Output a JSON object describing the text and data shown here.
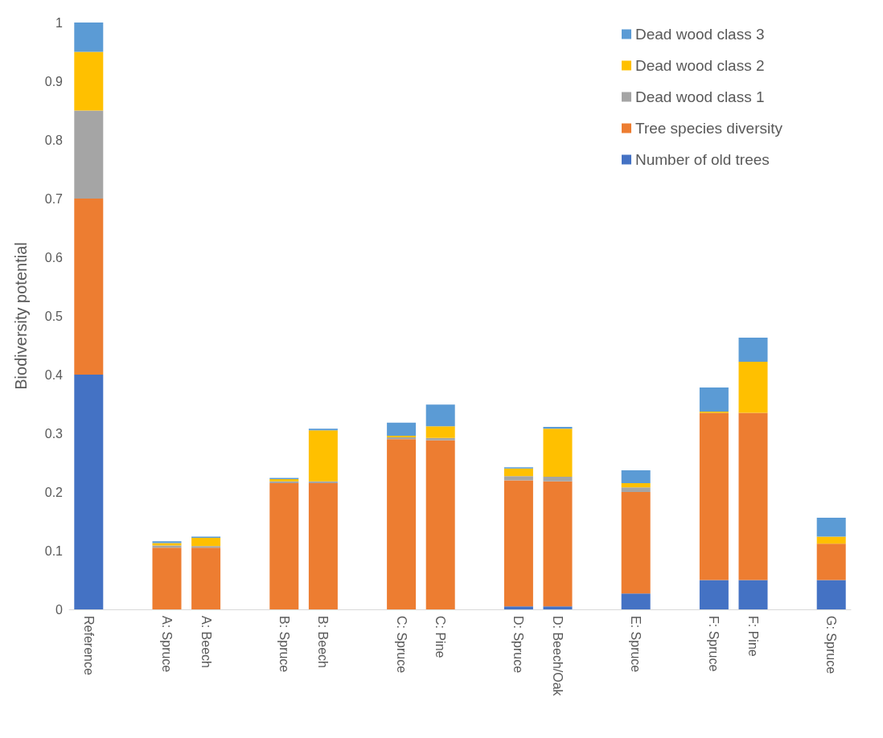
{
  "chart_data": {
    "type": "bar",
    "ylabel": "Biodiversity potential",
    "stacked": true,
    "categories": [
      "Reference",
      null,
      "A: Spruce",
      "A: Beech",
      null,
      "B: Spruce",
      "B: Beech",
      null,
      "C: Spruce",
      "C: Pine",
      null,
      "D: Spruce",
      "D: Beech/Oak",
      null,
      "E: Spruce",
      null,
      "F: Spruce",
      "F: Pine",
      null,
      "G: Spruce"
    ],
    "series": [
      {
        "name": "Number of old trees",
        "color": "#4472c4",
        "values": [
          0.4,
          null,
          0,
          0,
          null,
          0,
          0,
          null,
          0,
          0,
          null,
          0.005,
          0.005,
          null,
          0.027,
          null,
          0.05,
          0.05,
          null,
          0.05
        ]
      },
      {
        "name": "Tree species diversity",
        "color": "#ed7d31",
        "values": [
          0.3,
          null,
          0.105,
          0.105,
          null,
          0.215,
          0.215,
          null,
          0.29,
          0.288,
          null,
          0.215,
          0.213,
          null,
          0.173,
          null,
          0.285,
          0.285,
          null,
          0.062
        ]
      },
      {
        "name": "Dead wood class 1",
        "color": "#a5a5a5",
        "values": [
          0.15,
          null,
          0.004,
          0.003,
          null,
          0.003,
          0.003,
          null,
          0.003,
          0.004,
          null,
          0.007,
          0.008,
          null,
          0.008,
          null,
          null,
          null,
          null,
          null
        ]
      },
      {
        "name": "Dead wood class 2",
        "color": "#ffc000",
        "values": [
          0.1,
          null,
          0.004,
          0.014,
          null,
          0.004,
          0.087,
          null,
          0.003,
          0.02,
          null,
          0.013,
          0.082,
          null,
          0.007,
          null,
          0.002,
          0.087,
          null,
          0.012
        ]
      },
      {
        "name": "Dead wood class 3",
        "color": "#5b9bd5",
        "values": [
          0.05,
          null,
          0.003,
          0.002,
          null,
          0.002,
          0.003,
          null,
          0.022,
          0.037,
          null,
          0.002,
          0.003,
          null,
          0.022,
          null,
          0.041,
          0.041,
          null,
          0.032
        ]
      }
    ],
    "ylim": [
      0,
      1
    ],
    "yticks": [
      0,
      0.1,
      0.2,
      0.3,
      0.4,
      0.5,
      0.6,
      0.7,
      0.8,
      0.9,
      1
    ],
    "grid": false,
    "legend": "top right"
  }
}
